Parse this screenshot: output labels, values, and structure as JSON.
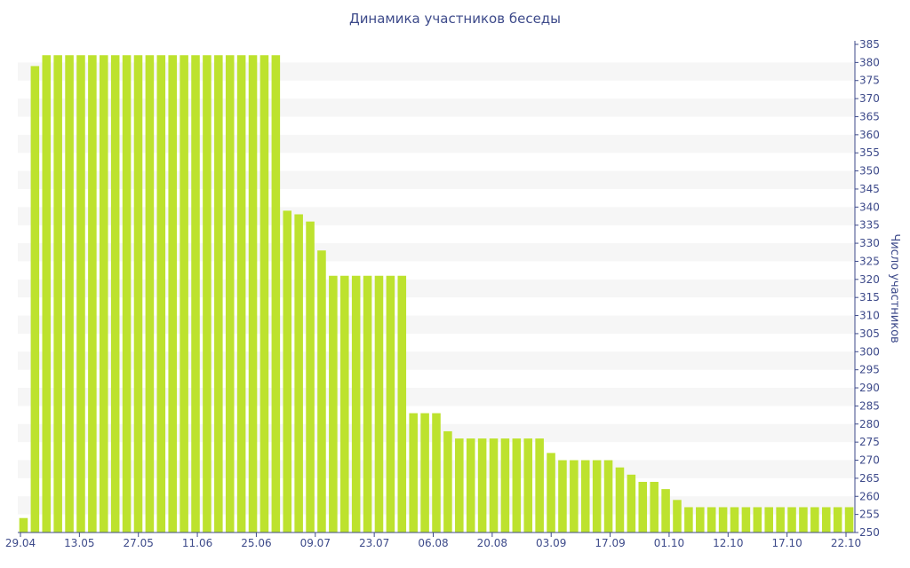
{
  "chart_data": {
    "type": "bar",
    "title": "Динамика участников беседы",
    "ylabel": "Число участников",
    "xlabel": "",
    "ylim": [
      250,
      385
    ],
    "ytick_step": 5,
    "yaxis_position": "right",
    "grid": "alternating horizontal bands",
    "bar_color": "#bde22e",
    "band_color": "#f6f6f6",
    "text_color": "#3d4a8a",
    "xtick_labels": [
      "29.04",
      "13.05",
      "27.05",
      "11.06",
      "25.06",
      "09.07",
      "23.07",
      "06.08",
      "20.08",
      "03.09",
      "17.09",
      "01.10",
      "12.10",
      "17.10",
      "22.10"
    ],
    "values": [
      254,
      379,
      382,
      382,
      382,
      382,
      382,
      382,
      382,
      382,
      382,
      382,
      382,
      382,
      382,
      382,
      382,
      382,
      382,
      382,
      382,
      382,
      382,
      339,
      338,
      336,
      328,
      321,
      321,
      321,
      321,
      321,
      321,
      321,
      283,
      283,
      283,
      278,
      276,
      276,
      276,
      276,
      276,
      276,
      276,
      276,
      272,
      270,
      270,
      270,
      270,
      270,
      268,
      266,
      264,
      264,
      262,
      259,
      257,
      257,
      257,
      257,
      257,
      257,
      257,
      257,
      257,
      257,
      257,
      257,
      257,
      257,
      257
    ]
  }
}
